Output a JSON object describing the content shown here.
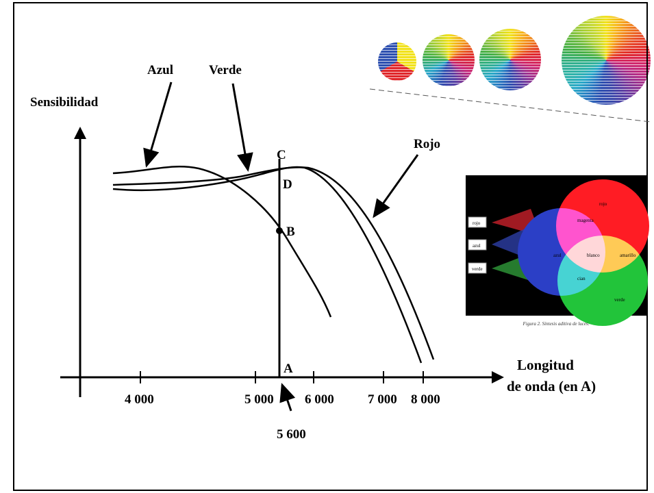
{
  "diagram": {
    "y_axis_label": "Sensibilidad",
    "x_axis_label": [
      "Longitud",
      "de onda (en A)"
    ],
    "curve_labels": [
      "Azul",
      "Verde",
      "Rojo"
    ],
    "points": [
      "C",
      "D",
      "B",
      "A"
    ],
    "x_ticks": [
      "4 000",
      "5 000",
      "6 000",
      "7 000",
      "8 000"
    ],
    "marker": "5 600"
  },
  "inset": {
    "projectors": [
      "rojo",
      "azul",
      "verde"
    ],
    "regions": [
      "rojo",
      "magenta",
      "azul",
      "blanco",
      "amarillo",
      "cian",
      "verde"
    ],
    "caption": "Figura 2. Síntesis aditiva de luces."
  }
}
